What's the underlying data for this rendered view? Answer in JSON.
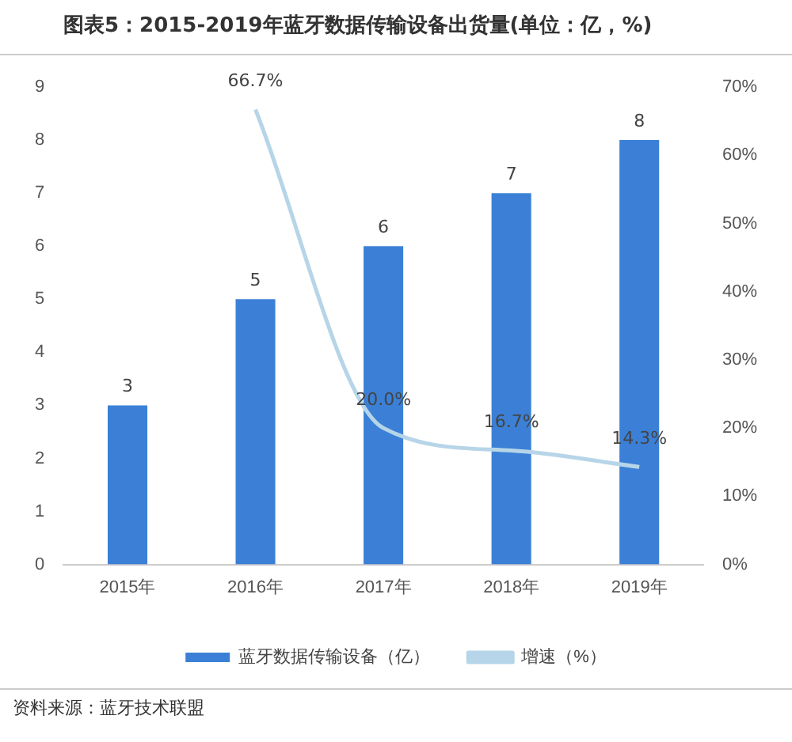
{
  "chart_data": {
    "type": "bar",
    "title": "图表5：2015-2019年蓝牙数据传输设备出货量(单位：亿，%)",
    "categories": [
      "2015年",
      "2016年",
      "2017年",
      "2018年",
      "2019年"
    ],
    "series": [
      {
        "name": "蓝牙数据传输设备（亿）",
        "color": "#3b80d6",
        "values": [
          3,
          5,
          6,
          7,
          8
        ]
      },
      {
        "name": "增速（%）",
        "type": "line",
        "axis": "y2",
        "color": "#b7d5e8",
        "values": [
          null,
          66.7,
          20.0,
          16.7,
          14.3
        ],
        "value_labels": [
          null,
          "66.7%",
          "20.0%",
          "16.7%",
          "14.3%"
        ]
      }
    ],
    "ylim": [
      0,
      9
    ],
    "yticks": [
      0,
      1,
      2,
      3,
      4,
      5,
      6,
      7,
      8,
      9
    ],
    "y2lim": [
      0,
      70
    ],
    "y2ticks": [
      {
        "value": 0,
        "label": "0%"
      },
      {
        "value": 10,
        "label": "10%"
      },
      {
        "value": 20,
        "label": "20%"
      },
      {
        "value": 30,
        "label": "30%"
      },
      {
        "value": 40,
        "label": "40%"
      },
      {
        "value": 50,
        "label": "50%"
      },
      {
        "value": 60,
        "label": "60%"
      },
      {
        "value": 70,
        "label": "70%"
      }
    ],
    "data_labels": true,
    "grid": false,
    "legend": "bottom",
    "marker": "none",
    "line_style": "solid",
    "annotations": [
      "资料来源：蓝牙技术联盟"
    ]
  }
}
